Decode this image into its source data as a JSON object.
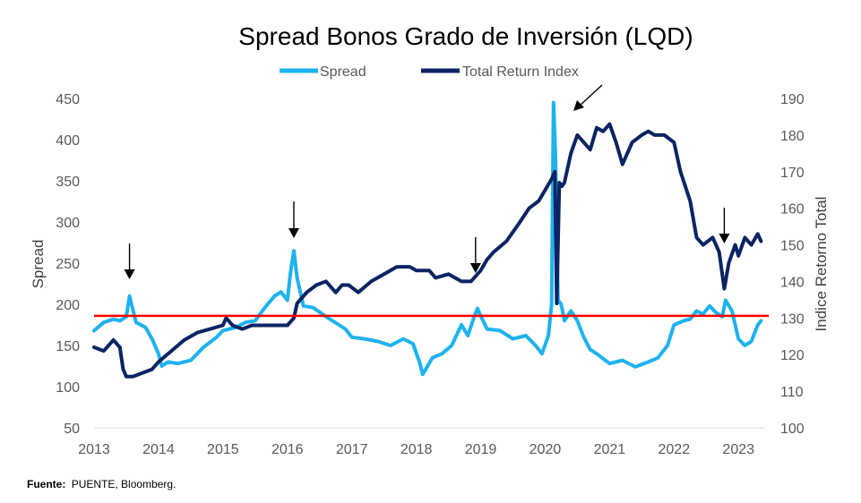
{
  "colors": {
    "spread": "#1EB2EF",
    "tri": "#0B2463",
    "ref": "#FF0000",
    "arrow": "#000000"
  },
  "source": {
    "label": "Fuente:",
    "text": "PUENTE, Bloomberg."
  },
  "chart_data": {
    "type": "line",
    "title": "Spread Bonos Grado de Inversión (LQD)",
    "ylabel": "Spread",
    "y2label": "Indice Retorno Total",
    "xlim": [
      2013,
      2023.4
    ],
    "ylim": [
      50,
      450
    ],
    "y2lim": [
      100,
      190
    ],
    "x_ticks": [
      "2013",
      "2014",
      "2015",
      "2016",
      "2017",
      "2018",
      "2019",
      "2020",
      "2021",
      "2022",
      "2023"
    ],
    "y_ticks": [
      "50",
      "100",
      "150",
      "200",
      "250",
      "300",
      "350",
      "400",
      "450"
    ],
    "y2_ticks": [
      "100",
      "110",
      "120",
      "130",
      "140",
      "150",
      "160",
      "170",
      "180",
      "190"
    ],
    "legend_position": "top-center",
    "reference_line": {
      "axis": "left",
      "value": 186
    },
    "arrows_at": [
      2013.55,
      2016.1,
      2018.92,
      2020.45,
      2022.78
    ],
    "series": [
      {
        "name": "Spread",
        "axis": "left",
        "x": [
          2013.0,
          2013.15,
          2013.3,
          2013.4,
          2013.5,
          2013.55,
          2013.65,
          2013.8,
          2013.9,
          2014.0,
          2014.05,
          2014.15,
          2014.3,
          2014.5,
          2014.7,
          2014.9,
          2015.0,
          2015.2,
          2015.35,
          2015.5,
          2015.65,
          2015.8,
          2015.9,
          2016.0,
          2016.05,
          2016.1,
          2016.15,
          2016.25,
          2016.4,
          2016.6,
          2016.8,
          2016.9,
          2017.0,
          2017.2,
          2017.4,
          2017.6,
          2017.8,
          2017.95,
          2018.05,
          2018.1,
          2018.25,
          2018.4,
          2018.55,
          2018.7,
          2018.8,
          2018.9,
          2018.95,
          2019.0,
          2019.1,
          2019.3,
          2019.5,
          2019.7,
          2019.85,
          2019.95,
          2020.05,
          2020.1,
          2020.13,
          2020.16,
          2020.2,
          2020.25,
          2020.3,
          2020.4,
          2020.5,
          2020.6,
          2020.7,
          2020.8,
          2021.0,
          2021.2,
          2021.4,
          2021.6,
          2021.75,
          2021.9,
          2022.0,
          2022.15,
          2022.25,
          2022.35,
          2022.45,
          2022.55,
          2022.65,
          2022.75,
          2022.8,
          2022.9,
          2023.0,
          2023.1,
          2023.2,
          2023.3,
          2023.35
        ],
        "values": [
          168,
          178,
          182,
          180,
          185,
          210,
          178,
          172,
          158,
          140,
          125,
          130,
          128,
          132,
          148,
          160,
          168,
          172,
          178,
          180,
          196,
          210,
          215,
          205,
          240,
          265,
          232,
          198,
          196,
          185,
          175,
          170,
          160,
          158,
          155,
          150,
          158,
          152,
          130,
          115,
          135,
          140,
          150,
          175,
          162,
          185,
          195,
          186,
          170,
          168,
          158,
          162,
          150,
          140,
          162,
          200,
          445,
          380,
          205,
          200,
          180,
          192,
          180,
          160,
          145,
          140,
          128,
          132,
          124,
          130,
          135,
          150,
          175,
          180,
          182,
          192,
          188,
          198,
          190,
          185,
          205,
          192,
          158,
          150,
          155,
          175,
          180
        ]
      },
      {
        "name": "Total Return Index",
        "axis": "right",
        "x": [
          2013.0,
          2013.15,
          2013.3,
          2013.4,
          2013.45,
          2013.5,
          2013.6,
          2013.75,
          2013.9,
          2014.0,
          2014.2,
          2014.4,
          2014.6,
          2014.8,
          2015.0,
          2015.05,
          2015.15,
          2015.3,
          2015.45,
          2015.6,
          2015.8,
          2016.0,
          2016.1,
          2016.15,
          2016.3,
          2016.45,
          2016.6,
          2016.75,
          2016.85,
          2016.95,
          2017.1,
          2017.3,
          2017.5,
          2017.7,
          2017.9,
          2018.0,
          2018.1,
          2018.2,
          2018.3,
          2018.5,
          2018.7,
          2018.85,
          2018.95,
          2019.0,
          2019.1,
          2019.2,
          2019.4,
          2019.6,
          2019.75,
          2019.9,
          2020.0,
          2020.1,
          2020.15,
          2020.18,
          2020.22,
          2020.26,
          2020.3,
          2020.4,
          2020.5,
          2020.6,
          2020.7,
          2020.8,
          2020.9,
          2021.0,
          2021.1,
          2021.2,
          2021.35,
          2021.5,
          2021.6,
          2021.7,
          2021.85,
          2022.0,
          2022.1,
          2022.25,
          2022.35,
          2022.45,
          2022.6,
          2022.7,
          2022.78,
          2022.85,
          2022.95,
          2023.0,
          2023.1,
          2023.2,
          2023.3,
          2023.35
        ],
        "values": [
          122,
          121,
          124,
          122,
          116,
          114,
          114,
          115,
          116,
          118,
          121,
          124,
          126,
          127,
          128,
          130,
          128,
          127,
          128,
          128,
          128,
          128,
          130,
          134,
          137,
          139,
          140,
          137,
          139,
          139,
          137,
          140,
          142,
          144,
          144,
          143,
          143,
          143,
          141,
          142,
          140,
          140,
          142,
          143,
          146,
          148,
          151,
          156,
          160,
          162,
          165,
          168,
          170,
          134,
          167,
          166,
          167,
          175,
          180,
          178,
          176,
          182,
          181,
          183,
          178,
          172,
          178,
          180,
          181,
          180,
          180,
          178,
          170,
          162,
          152,
          150,
          152,
          148,
          138,
          145,
          150,
          147,
          152,
          150,
          153,
          151
        ]
      }
    ]
  }
}
